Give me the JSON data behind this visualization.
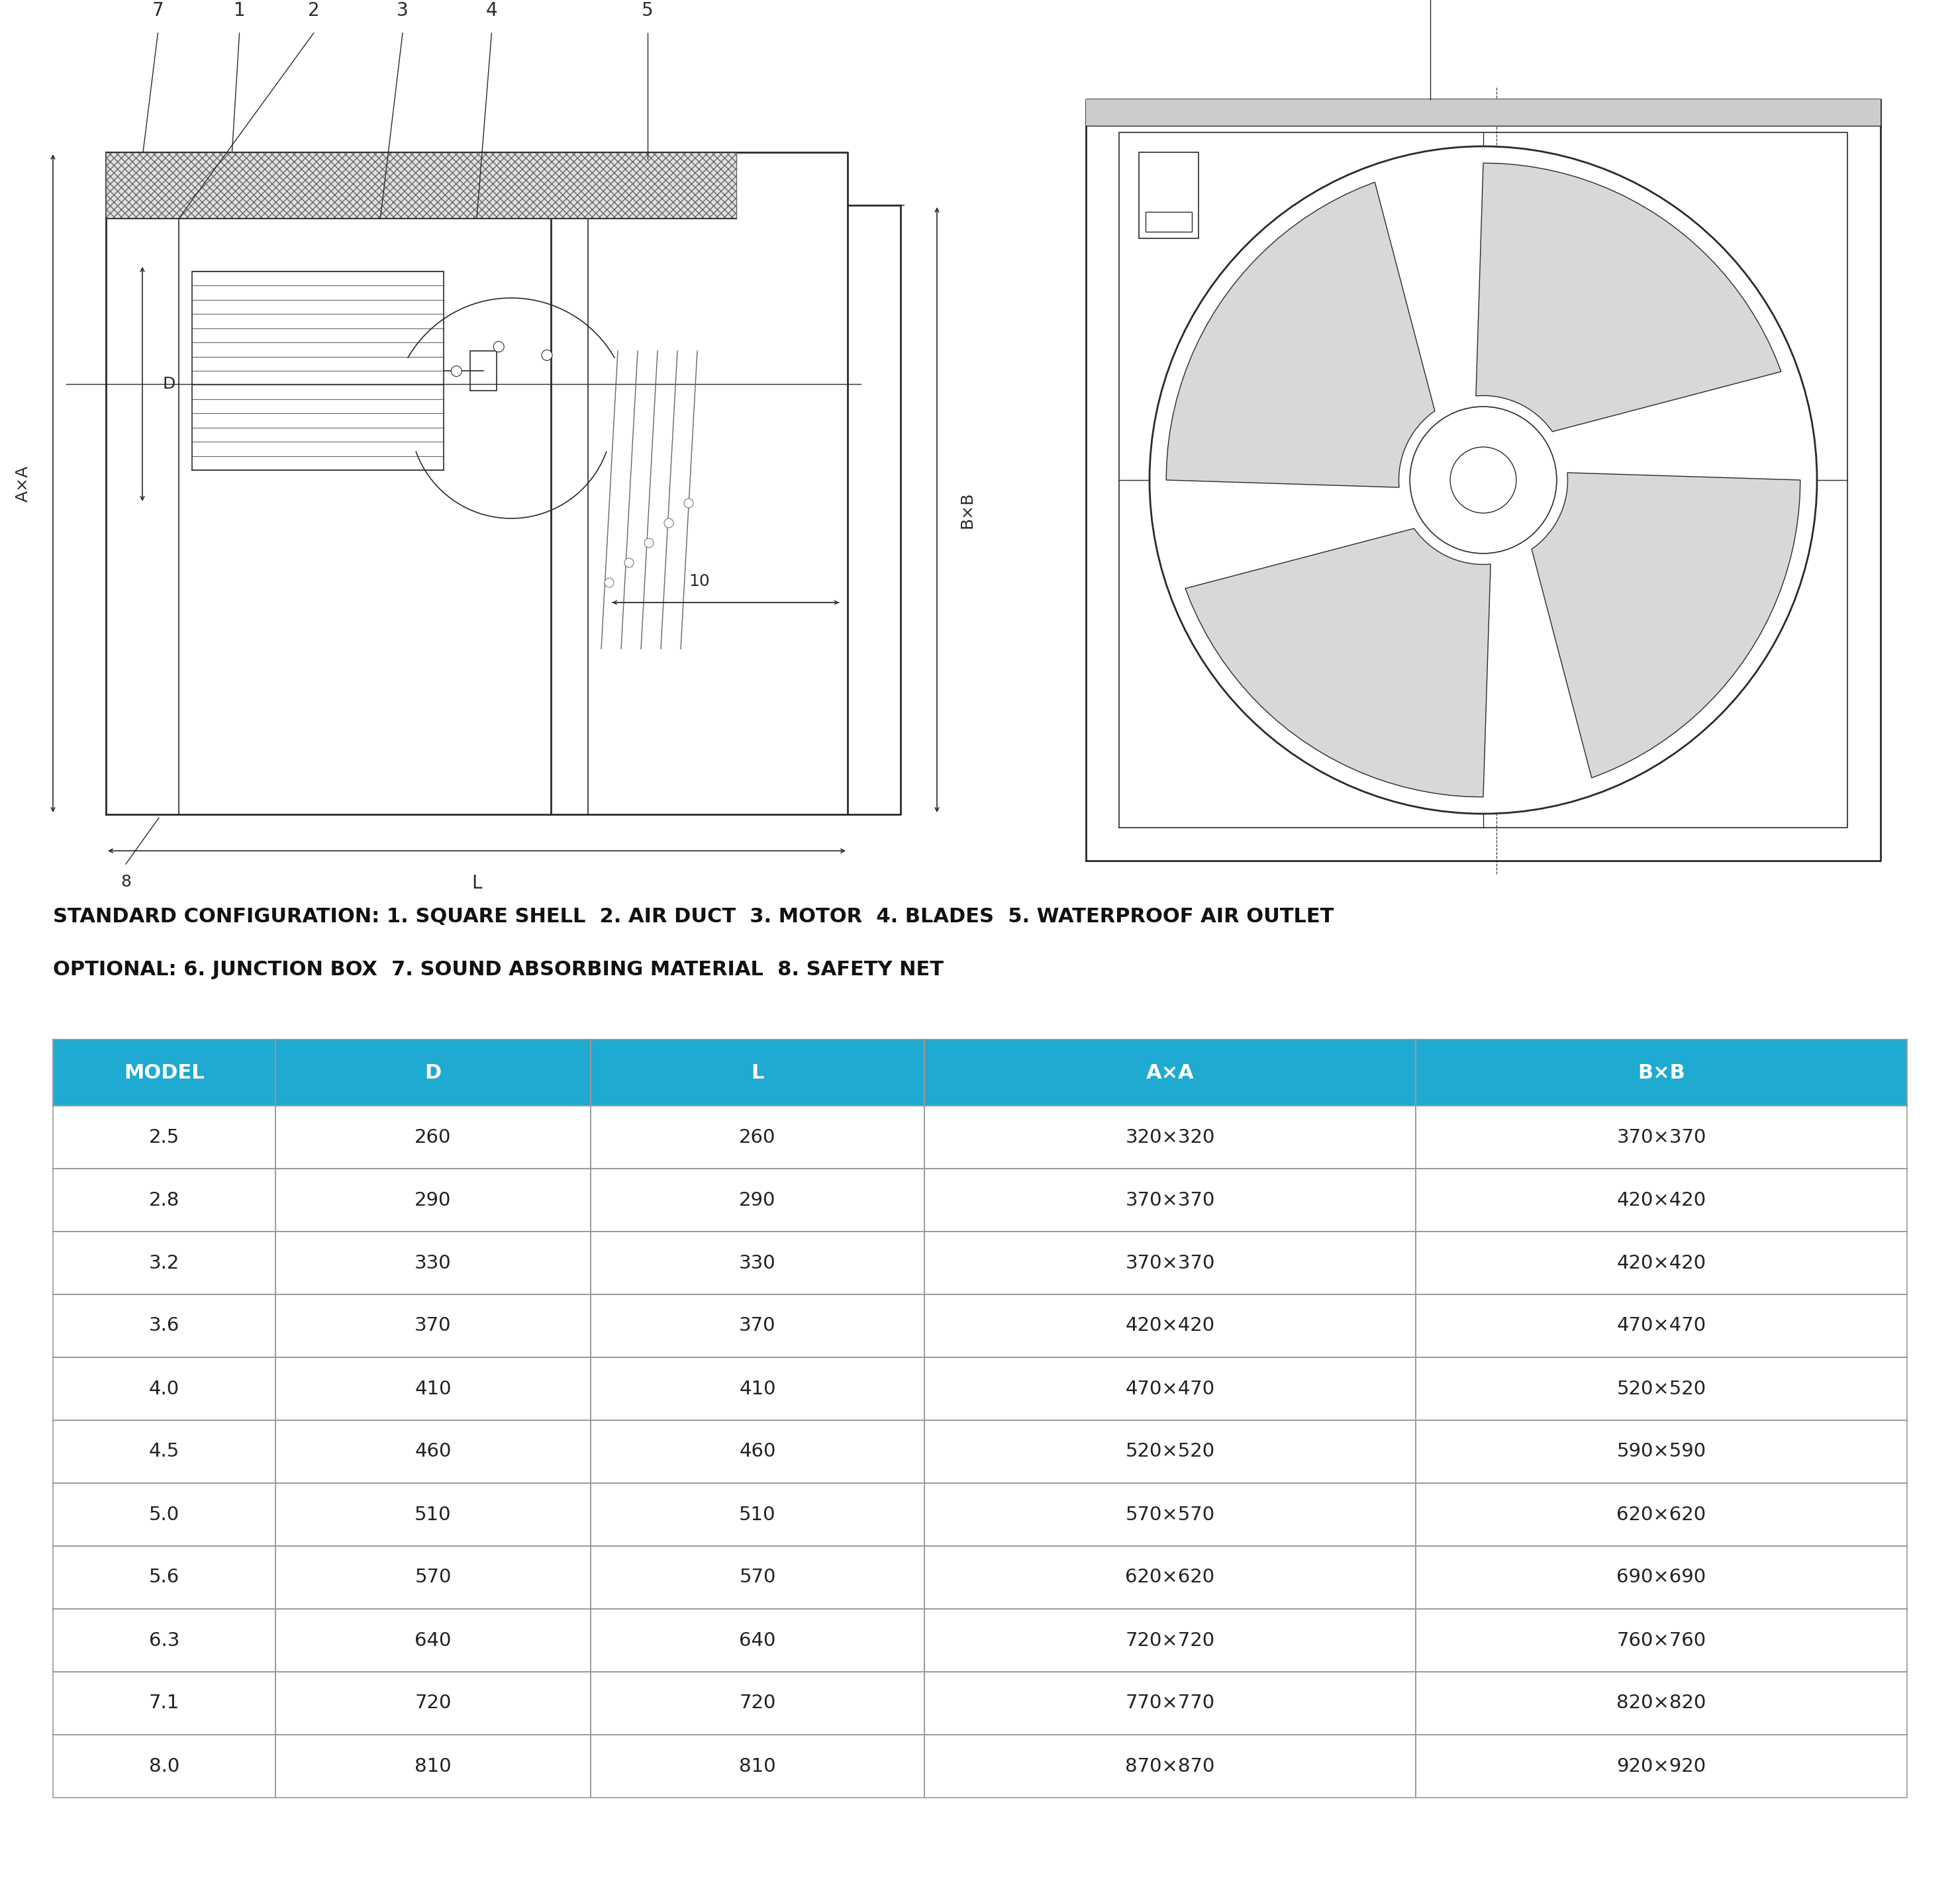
{
  "config_text_line1": "STANDARD CONFIGURATION: 1. SQUARE SHELL  2. AIR DUCT  3. MOTOR  4. BLADES  5. WATERPROOF AIR OUTLET",
  "config_text_line2": "OPTIONAL: 6. JUNCTION BOX  7. SOUND ABSORBING MATERIAL  8. SAFETY NET",
  "header": [
    "MODEL",
    "D",
    "L",
    "A×A",
    "B×B"
  ],
  "rows": [
    [
      "2.5",
      "260",
      "260",
      "320×320",
      "370×370"
    ],
    [
      "2.8",
      "290",
      "290",
      "370×370",
      "420×420"
    ],
    [
      "3.2",
      "330",
      "330",
      "370×370",
      "420×420"
    ],
    [
      "3.6",
      "370",
      "370",
      "420×420",
      "470×470"
    ],
    [
      "4.0",
      "410",
      "410",
      "470×470",
      "520×520"
    ],
    [
      "4.5",
      "460",
      "460",
      "520×520",
      "590×590"
    ],
    [
      "5.0",
      "510",
      "510",
      "570×570",
      "620×620"
    ],
    [
      "5.6",
      "570",
      "570",
      "620×620",
      "690×690"
    ],
    [
      "6.3",
      "640",
      "640",
      "720×720",
      "760×760"
    ],
    [
      "7.1",
      "720",
      "720",
      "770×770",
      "820×820"
    ],
    [
      "8.0",
      "810",
      "810",
      "870×870",
      "920×920"
    ]
  ],
  "header_bg": "#1eaad1",
  "header_text_color": "#ffffff",
  "background_color": "#ffffff",
  "fig_width": 29.6,
  "fig_height": 28.5
}
